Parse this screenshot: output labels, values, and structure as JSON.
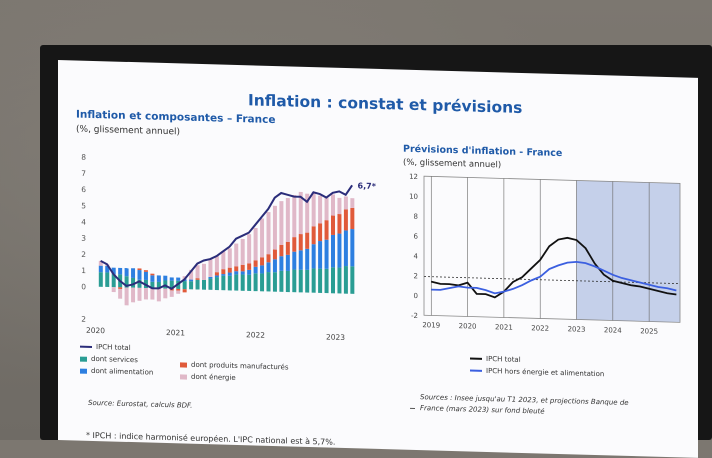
{
  "slide": {
    "title": "Inflation : constat et prévisions",
    "footnote": "* IPCH : indice harmonisé européen. L'IPC national est à 5,7%."
  },
  "left_chart_text": {
    "title": "Inflation et composantes – France",
    "subtitle": "(%, glissement annuel)",
    "source": "Source: Eurostat, calculs BDF.",
    "annotation": "6,7*",
    "legend": {
      "total": "IPCH total",
      "services": "dont services",
      "alimentation": "dont alimentation",
      "manufactures": "dont produits manufacturés",
      "energie": "dont énergie"
    }
  },
  "right_chart_text": {
    "title": "Prévisions d'inflation - France",
    "subtitle": "(%, glissement annuel)",
    "source": "Sources : Insee jusqu'au T1 2023, et projections Banque de France (mars 2023) sur fond bleuté",
    "legend": {
      "total": "IPCH total",
      "core": "IPCH hors énergie et alimentation"
    }
  },
  "colors": {
    "title_blue": "#1f5aa8",
    "services": "#2a9d94",
    "alimentation": "#2d7fe0",
    "manufactures": "#e05a3a",
    "energie": "#e0b8c8",
    "total_line_left": "#2b2d7a",
    "total_line_right": "#111111",
    "core_line": "#3b5fe0",
    "forecast_shade": "#c5d0ea"
  },
  "chart_data": [
    {
      "type": "bar",
      "stacked": true,
      "x_ticks": [
        "2020",
        "2021",
        "2022",
        "2023"
      ],
      "ylim": [
        -2,
        8
      ],
      "y_ticks": [
        -2,
        -1,
        0,
        1,
        2,
        3,
        4,
        5,
        6,
        7,
        8
      ],
      "y_tick_labels": [
        "2",
        "",
        "0",
        "1",
        "2",
        "3",
        "4",
        "5",
        "6",
        "7",
        "8"
      ],
      "months": 40,
      "series": [
        {
          "name": "dont services",
          "values": [
            0.9,
            0.9,
            0.8,
            0.8,
            0.7,
            0.6,
            0.5,
            0.5,
            0.4,
            0.4,
            0.5,
            0.5,
            0.5,
            0.5,
            0.5,
            0.6,
            0.6,
            0.7,
            0.8,
            0.9,
            0.9,
            1.0,
            1.0,
            1.0,
            1.1,
            1.1,
            1.2,
            1.2,
            1.3,
            1.3,
            1.4,
            1.4,
            1.4,
            1.5,
            1.5,
            1.5,
            1.6,
            1.6,
            1.7,
            1.7
          ]
        },
        {
          "name": "dont alimentation",
          "values": [
            0.4,
            0.4,
            0.4,
            0.4,
            0.5,
            0.6,
            0.6,
            0.5,
            0.4,
            0.4,
            0.3,
            0.2,
            0.2,
            0.1,
            0.1,
            0.0,
            0.0,
            0.1,
            0.1,
            0.1,
            0.2,
            0.2,
            0.2,
            0.3,
            0.4,
            0.5,
            0.6,
            0.8,
            0.9,
            1.0,
            1.1,
            1.2,
            1.3,
            1.5,
            1.7,
            1.8,
            2.0,
            2.1,
            2.2,
            2.3
          ]
        },
        {
          "name": "dont produits manufacturés",
          "values": [
            0.0,
            0.0,
            0.0,
            -0.1,
            0.0,
            0.0,
            0.1,
            0.1,
            0.1,
            0.0,
            0.0,
            -0.1,
            -0.1,
            -0.2,
            0.0,
            0.1,
            0.0,
            0.0,
            0.2,
            0.3,
            0.3,
            0.3,
            0.4,
            0.4,
            0.4,
            0.5,
            0.5,
            0.6,
            0.7,
            0.8,
            0.9,
            1.0,
            1.0,
            1.1,
            1.1,
            1.2,
            1.2,
            1.2,
            1.3,
            1.3
          ]
        },
        {
          "name": "dont énergie",
          "values": [
            0.3,
            0.1,
            -0.3,
            -0.6,
            -1.1,
            -0.9,
            -0.8,
            -0.7,
            -0.7,
            -0.8,
            -0.6,
            -0.4,
            -0.2,
            0.2,
            0.6,
            0.8,
            1.0,
            1.1,
            1.0,
            1.1,
            1.2,
            1.4,
            1.6,
            1.8,
            2.0,
            2.4,
            2.6,
            2.7,
            2.7,
            2.7,
            2.6,
            2.6,
            2.4,
            2.1,
            1.7,
            1.4,
            1.3,
            1.0,
            0.8,
            0.6
          ]
        }
      ],
      "total": [
        1.6,
        1.4,
        0.8,
        0.4,
        0.1,
        0.2,
        0.4,
        0.2,
        0.0,
        0.0,
        0.2,
        0.0,
        0.3,
        0.6,
        1.1,
        1.6,
        1.8,
        1.9,
        2.1,
        2.4,
        2.7,
        3.2,
        3.4,
        3.6,
        4.1,
        4.6,
        5.1,
        5.8,
        6.1,
        6.0,
        5.9,
        5.9,
        5.6,
        6.2,
        6.1,
        5.9,
        6.2,
        6.3,
        6.1,
        6.7
      ]
    },
    {
      "type": "line",
      "x_ticks": [
        "2019",
        "2020",
        "2021",
        "2022",
        "2023",
        "2024",
        "2025"
      ],
      "ylim": [
        -2,
        12
      ],
      "y_ticks": [
        -2,
        0,
        2,
        4,
        6,
        8,
        10,
        12
      ],
      "forecast_from": 2023.0,
      "reference_line": 1.9,
      "series": [
        {
          "name": "IPCH total",
          "x": [
            2019.0,
            2019.25,
            2019.5,
            2019.75,
            2020.0,
            2020.25,
            2020.5,
            2020.75,
            2021.0,
            2021.25,
            2021.5,
            2021.75,
            2022.0,
            2022.25,
            2022.5,
            2022.75,
            2023.0,
            2023.25,
            2023.5,
            2023.75,
            2024.0,
            2024.25,
            2024.5,
            2024.75,
            2025.0,
            2025.25,
            2025.5,
            2025.75
          ],
          "values": [
            1.4,
            1.2,
            1.2,
            1.1,
            1.4,
            0.3,
            0.3,
            0.0,
            0.6,
            1.6,
            2.1,
            3.0,
            3.9,
            5.3,
            6.0,
            6.2,
            6.0,
            5.2,
            3.7,
            2.6,
            2.0,
            1.8,
            1.6,
            1.5,
            1.3,
            1.1,
            0.9,
            0.8
          ]
        },
        {
          "name": "IPCH hors énergie et alimentation",
          "x": [
            2019.0,
            2019.25,
            2019.5,
            2019.75,
            2020.0,
            2020.25,
            2020.5,
            2020.75,
            2021.0,
            2021.25,
            2021.5,
            2021.75,
            2022.0,
            2022.25,
            2022.5,
            2022.75,
            2023.0,
            2023.25,
            2023.5,
            2023.75,
            2024.0,
            2024.25,
            2024.5,
            2024.75,
            2025.0,
            2025.25,
            2025.5,
            2025.75
          ],
          "values": [
            0.6,
            0.6,
            0.8,
            1.0,
            0.9,
            0.9,
            0.7,
            0.4,
            0.6,
            0.9,
            1.3,
            1.8,
            2.2,
            3.0,
            3.4,
            3.7,
            3.8,
            3.7,
            3.4,
            3.0,
            2.6,
            2.3,
            2.1,
            1.9,
            1.7,
            1.5,
            1.4,
            1.2
          ]
        }
      ]
    }
  ]
}
